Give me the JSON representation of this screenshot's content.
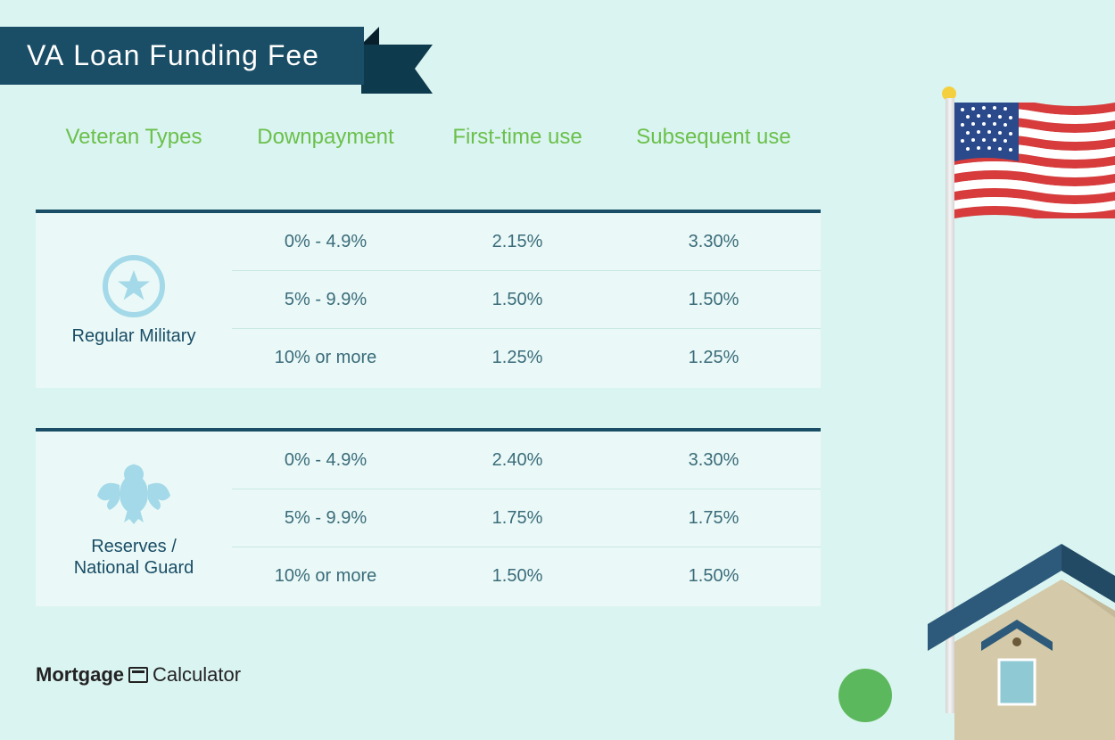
{
  "title": {
    "prefix": "VA",
    "rest": " Loan Funding Fee"
  },
  "colors": {
    "background": "#daf4f1",
    "banner_bg": "#1a4d66",
    "banner_shadow": "#0e3a4d",
    "header_text": "#6bc04b",
    "section_bg": "#eaf9f7",
    "section_border": "#1a4d66",
    "row_divider": "#c8e8e4",
    "cell_text": "#3a6b7a",
    "label_text": "#1a4d66",
    "icon_color": "#a3d9e8"
  },
  "typography": {
    "title_fontsize": 32,
    "header_fontsize": 24,
    "cell_fontsize": 20,
    "label_fontsize": 20
  },
  "columns": [
    "Veteran Types",
    "Downpayment",
    "First-time use",
    "Subsequent use"
  ],
  "sections": [
    {
      "label": "Regular Military",
      "icon": "star-circle",
      "rows": [
        {
          "down": "0% - 4.9%",
          "first": "2.15%",
          "sub": "3.30%"
        },
        {
          "down": "5% - 9.9%",
          "first": "1.50%",
          "sub": "1.50%"
        },
        {
          "down": "10% or more",
          "first": "1.25%",
          "sub": "1.25%"
        }
      ]
    },
    {
      "label": "Reserves / National Guard",
      "icon": "eagle",
      "rows": [
        {
          "down": "0% - 4.9%",
          "first": "2.40%",
          "sub": "3.30%"
        },
        {
          "down": "5% - 9.9%",
          "first": "1.75%",
          "sub": "1.75%"
        },
        {
          "down": "10% or more",
          "first": "1.50%",
          "sub": "1.50%"
        }
      ]
    }
  ],
  "footer": {
    "brand1": "Mortgage",
    "brand2": "Calculator"
  },
  "flag": {
    "stripe_red": "#d73b3b",
    "stripe_white": "#ffffff",
    "canton": "#2b4a8b",
    "star_color": "#ffffff"
  },
  "house": {
    "roof": "#2d5a7a",
    "wall": "#d4c9a8",
    "wall_shadow": "#c4b998",
    "window": "#8fc9d4"
  }
}
